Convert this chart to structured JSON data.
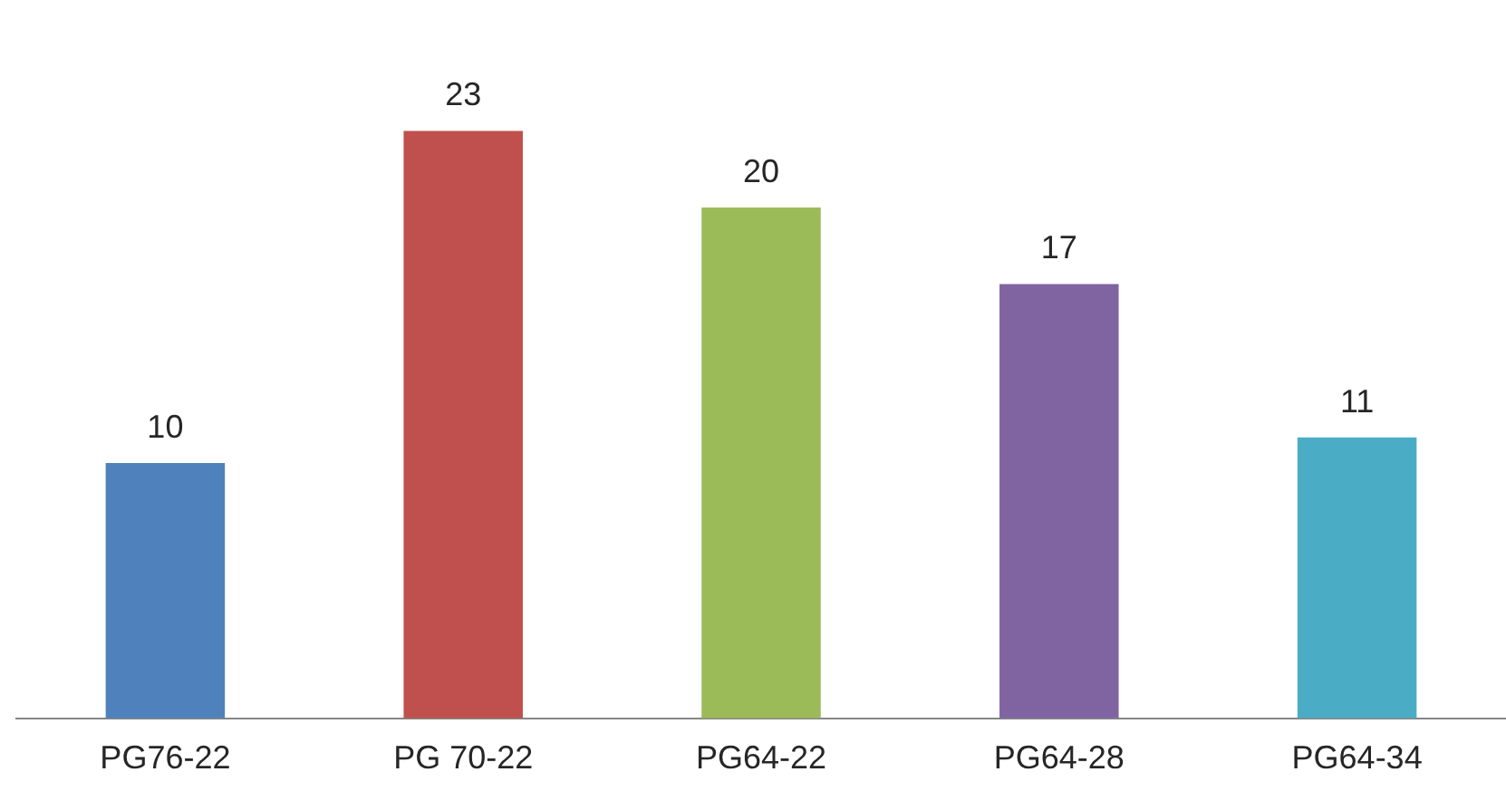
{
  "chart_data": {
    "type": "bar",
    "categories": [
      "PG76-22",
      "PG 70-22",
      "PG64-22",
      "PG64-28",
      "PG64-34"
    ],
    "values": [
      10,
      23,
      20,
      17,
      11
    ],
    "colors": [
      "#4f81bd",
      "#c0504d",
      "#9bbb59",
      "#8064a2",
      "#4bacc6"
    ],
    "data_labels": true,
    "grid": false,
    "legend": false
  }
}
